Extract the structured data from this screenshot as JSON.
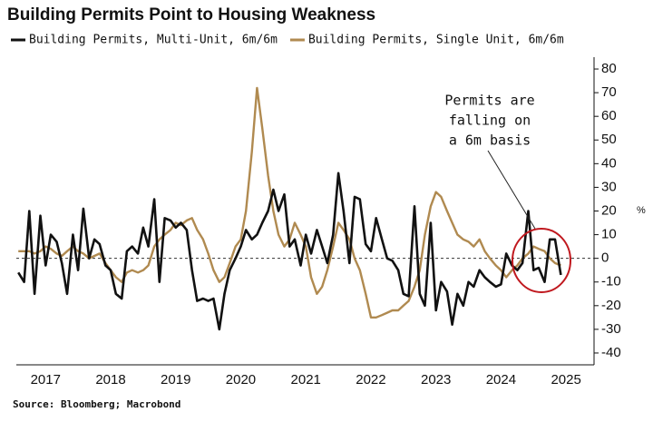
{
  "chart_data": {
    "type": "line",
    "title": "Building Permits Point to Housing Weakness",
    "source": "Source: Bloomberg; Macrobond",
    "y_unit": "%",
    "annotation": [
      "Permits are",
      "falling on",
      "a 6m basis"
    ],
    "x": [
      2017.08,
      2017.17,
      2017.25,
      2017.33,
      2017.42,
      2017.5,
      2017.58,
      2017.67,
      2017.75,
      2017.83,
      2017.92,
      2018.0,
      2018.08,
      2018.17,
      2018.25,
      2018.33,
      2018.42,
      2018.5,
      2018.58,
      2018.67,
      2018.75,
      2018.83,
      2018.92,
      2019.0,
      2019.08,
      2019.17,
      2019.25,
      2019.33,
      2019.42,
      2019.5,
      2019.58,
      2019.67,
      2019.75,
      2019.83,
      2019.92,
      2020.0,
      2020.08,
      2020.17,
      2020.25,
      2020.33,
      2020.42,
      2020.5,
      2020.58,
      2020.67,
      2020.75,
      2020.83,
      2020.92,
      2021.0,
      2021.08,
      2021.17,
      2021.25,
      2021.33,
      2021.42,
      2021.5,
      2021.58,
      2021.67,
      2021.75,
      2021.83,
      2021.92,
      2022.0,
      2022.08,
      2022.17,
      2022.25,
      2022.33,
      2022.42,
      2022.5,
      2022.58,
      2022.67,
      2022.75,
      2022.83,
      2022.92,
      2023.0,
      2023.08,
      2023.17,
      2023.25,
      2023.33,
      2023.42,
      2023.5,
      2023.58,
      2023.67,
      2023.75,
      2023.83,
      2023.92,
      2024.0,
      2024.08,
      2024.17,
      2024.25,
      2024.33,
      2024.42,
      2024.5,
      2024.58,
      2024.67,
      2024.75,
      2024.83,
      2024.92,
      2025.0,
      2025.08,
      2025.17,
      2025.25,
      2025.33,
      2025.42
    ],
    "series": [
      {
        "name": "Building Permits, Multi-Unit, 6m/6m",
        "color": "#111111",
        "values": [
          -6,
          -10,
          20,
          -15,
          18,
          -3,
          10,
          7,
          -2,
          -15,
          10,
          -5,
          21,
          0,
          8,
          6,
          -3,
          -5,
          -15,
          -17,
          3,
          5,
          2,
          13,
          5,
          25,
          -10,
          17,
          16,
          13,
          15,
          12,
          -5,
          -18,
          -17,
          -18,
          -17,
          -30,
          -15,
          -5,
          0,
          5,
          12,
          8,
          10,
          15,
          20,
          29,
          20,
          27,
          5,
          8,
          -3,
          10,
          2,
          12,
          5,
          -2,
          10,
          36,
          20,
          -2,
          26,
          25,
          6,
          3,
          17,
          8,
          0,
          -1,
          -5,
          -15,
          -16,
          22,
          -15,
          -20,
          15,
          -22,
          -10,
          -14,
          -28,
          -15,
          -20,
          -10,
          -12,
          -5,
          -8,
          -10,
          -12,
          -11,
          2,
          -3,
          -5,
          -2,
          20,
          -5,
          -4,
          -10,
          8,
          8,
          -7
        ]
      },
      {
        "name": "Building Permits, Single Unit, 6m/6m",
        "color": "#b08a50",
        "values": [
          3,
          3,
          3,
          2,
          3,
          5,
          4,
          2,
          1,
          3,
          5,
          3,
          2,
          0,
          1,
          2,
          -2,
          -5,
          -8,
          -10,
          -6,
          -5,
          -6,
          -5,
          -3,
          5,
          8,
          10,
          12,
          15,
          14,
          16,
          17,
          12,
          8,
          2,
          -5,
          -10,
          -8,
          -2,
          5,
          8,
          20,
          45,
          72,
          55,
          35,
          20,
          10,
          5,
          8,
          15,
          10,
          5,
          -8,
          -15,
          -12,
          -5,
          5,
          15,
          12,
          8,
          0,
          -5,
          -15,
          -25,
          -25,
          -24,
          -23,
          -22,
          -22,
          -20,
          -18,
          -12,
          -5,
          10,
          22,
          28,
          26,
          20,
          15,
          10,
          8,
          7,
          5,
          8,
          3,
          0,
          -3,
          -5,
          -8,
          -5,
          -3,
          0,
          2,
          5,
          4,
          3,
          0,
          -2,
          -3
        ]
      }
    ],
    "xlim": [
      2017.05,
      2025.93
    ],
    "xticks": [
      {
        "value": 2017.5,
        "label": "2017"
      },
      {
        "value": 2018.5,
        "label": "2018"
      },
      {
        "value": 2019.5,
        "label": "2019"
      },
      {
        "value": 2020.5,
        "label": "2020"
      },
      {
        "value": 2021.5,
        "label": "2021"
      },
      {
        "value": 2022.5,
        "label": "2022"
      },
      {
        "value": 2023.5,
        "label": "2023"
      },
      {
        "value": 2024.5,
        "label": "2024"
      },
      {
        "value": 2025.5,
        "label": "2025"
      }
    ],
    "ylim": [
      -45,
      85
    ],
    "yticks": [
      -40,
      -30,
      -20,
      -10,
      0,
      10,
      20,
      30,
      40,
      50,
      60,
      70,
      80
    ],
    "grid": false
  }
}
